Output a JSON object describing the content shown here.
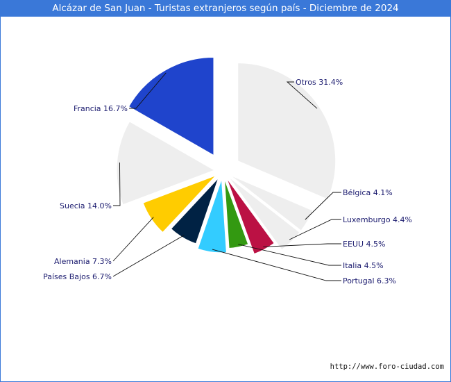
{
  "chart_data": {
    "type": "pie",
    "title": "Alcázar de San Juan - Turistas extranjeros según país - Diciembre de 2024",
    "slices": [
      {
        "label": "Otros",
        "value": 31.4,
        "display": "Otros 31.4%",
        "color": "#eeeeee"
      },
      {
        "label": "Bélgica",
        "value": 4.1,
        "display": "Bélgica 4.1%",
        "color": "#eeeeee"
      },
      {
        "label": "Luxemburgo",
        "value": 4.4,
        "display": "Luxemburgo 4.4%",
        "color": "#eeeeee"
      },
      {
        "label": "EEUU",
        "value": 4.5,
        "display": "EEUU 4.5%",
        "color": "#bb1144"
      },
      {
        "label": "Italia",
        "value": 4.5,
        "display": "Italia 4.5%",
        "color": "#339911"
      },
      {
        "label": "Portugal",
        "value": 6.3,
        "display": "Portugal 6.3%",
        "color": "#33ccff"
      },
      {
        "label": "Países Bajos",
        "value": 6.7,
        "display": "Países Bajos 6.7%",
        "color": "#002244"
      },
      {
        "label": "Alemania",
        "value": 7.3,
        "display": "Alemania 7.3%",
        "color": "#ffcc00"
      },
      {
        "label": "Suecia",
        "value": 14.0,
        "display": "Suecia 14.0%",
        "color": "#eeeeee"
      },
      {
        "label": "Francia",
        "value": 16.7,
        "display": "Francia 16.7%",
        "color": "#1f44cc"
      }
    ],
    "label_color": "#1a1a6e"
  },
  "footer": {
    "url": "http://www.foro-ciudad.com"
  }
}
